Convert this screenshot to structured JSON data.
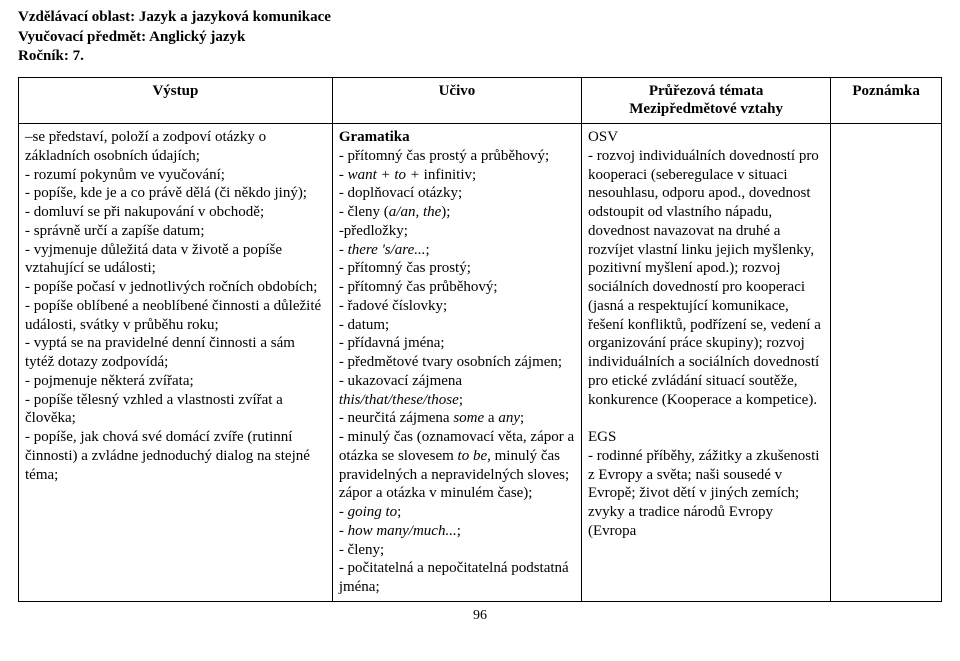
{
  "header": {
    "area_label": "Vzdělávací oblast:",
    "area_value": "Jazyk a jazyková komunikace",
    "subject_label": "Vyučovací předmět:",
    "subject_value": "Anglický jazyk",
    "grade_label": "Ročník:",
    "grade_value": "7."
  },
  "table": {
    "head": {
      "vystup": "Výstup",
      "ucivo": "Učivo",
      "prurez_line1": "Průřezová témata",
      "prurez_line2": "Mezipředmětové vztahy",
      "poznamka": "Poznámka"
    },
    "row": {
      "vystup": "–se představí, položí a zodpoví otázky o základních osobních údajích;\n- rozumí pokynům ve vyučování;\n- popíše, kde je a co právě dělá (či někdo jiný);\n- domluví se při nakupování v obchodě;\n- správně určí a zapíše datum;\n- vyjmenuje důležitá data v životě a popíše vztahující se události;\n- popíše počasí v jednotlivých ročních obdobích;\n- popíše oblíbené a neoblíbené činnosti a důležité události, svátky v průběhu roku;\n- vyptá se na pravidelné denní činnosti  a sám tytéž dotazy zodpovídá;\n- pojmenuje některá zvířata;\n- popíše tělesný vzhled a vlastnosti zvířat a člověka;\n- popíše, jak chová své domácí zvíře (rutinní činnosti) a zvládne jednoduchý dialog na stejné téma;",
      "ucivo_html": "<b>Gramatika</b><br>- přítomný čas prostý a průběhový;<br>- <i>want + to +</i> infinitiv;<br>- doplňovací otázky;<br>- členy (<i>a/an, the</i>);<br>-předložky;<br>- <i>there 's/are...</i>;<br>- přítomný čas prostý;<br>- přítomný čas průběhový;<br>- řadové číslovky;<br>- datum;<br>- přídavná jména;<br>- předmětové tvary osobních zájmen;<br>- ukazovací zájmena <i>this/that/these/those</i>;<br>- neurčitá zájmena <i>some</i>  a <i>any</i>;<br>- minulý čas (oznamovací věta, zápor a otázka se slovesem <i>to be</i>, minulý čas pravidelných a nepravidelných sloves; zápor a otázka v minulém čase);<br>- <i>going to</i>;<br>- <i>how many/much...</i>;<br>- členy;<br>- počitatelná a nepočitatelná podstatná jména;",
      "prurez_html": "OSV<br>- rozvoj individuálních dovedností pro kooperaci (seberegulace v situaci nesouhlasu, odporu apod., dovednost odstoupit od vlastního nápadu, dovednost navazovat na druhé a rozvíjet vlastní linku jejich myšlenky, pozitivní myšlení apod.); rozvoj sociálních dovedností pro kooperaci (jasná a respektující komunikace, řešení konfliktů, podřízení se, vedení a organizování práce skupiny); rozvoj individuálních a sociálních dovedností pro etické zvládání situací soutěže, konkurence (Kooperace a kompetice).<br><br>EGS<br>- rodinné příběhy, zážitky a zkušenosti z Evropy a světa; naši sousedé v Evropě; život dětí v jiných zemích; zvyky a tradice národů Evropy (Evropa",
      "poznamka": ""
    }
  },
  "page_number": "96"
}
